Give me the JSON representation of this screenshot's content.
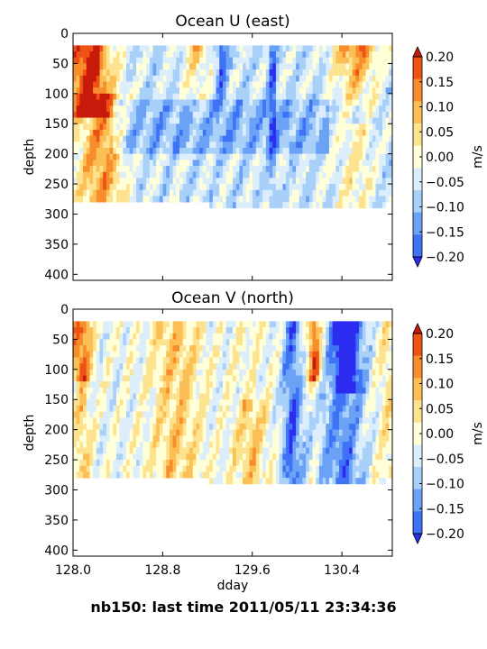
{
  "colors": {
    "levels": [
      "#2c2cf0",
      "#3f73f5",
      "#6ba2f6",
      "#a8d0f9",
      "#dceefc",
      "#ffffd8",
      "#fde38f",
      "#fbbf55",
      "#f88e2b",
      "#ee5316",
      "#c71a0a"
    ],
    "under": "#1010b8",
    "over": "#991000"
  },
  "chart_data": [
    {
      "type": "heatmap",
      "title": "Ocean U (east)",
      "xlabel": "",
      "ylabel": "depth",
      "x_ticks": [
        "128.0",
        "128.8",
        "129.6",
        "130.4"
      ],
      "x_range": [
        128.0,
        130.85
      ],
      "y_ticks": [
        "0",
        "50",
        "100",
        "150",
        "200",
        "250",
        "300",
        "350",
        "400"
      ],
      "y_range": [
        410,
        0
      ],
      "y_inverted": true,
      "data_depth_range": [
        20,
        290
      ],
      "colorbar": {
        "label": "m/s",
        "ticks": [
          "0.20",
          "0.15",
          "0.10",
          "0.05",
          "0.00",
          "−0.05",
          "−0.10",
          "−0.15",
          "−0.20"
        ],
        "levels": [
          -0.25,
          -0.2,
          -0.15,
          -0.1,
          -0.05,
          0,
          0.05,
          0.1,
          0.15,
          0.2,
          0.25
        ],
        "extend": "both"
      }
    },
    {
      "type": "heatmap",
      "title": "Ocean V (north)",
      "xlabel": "dday",
      "ylabel": "depth",
      "x_ticks": [
        "128.0",
        "128.8",
        "129.6",
        "130.4"
      ],
      "x_range": [
        128.0,
        130.85
      ],
      "y_ticks": [
        "0",
        "50",
        "100",
        "150",
        "200",
        "250",
        "300",
        "350",
        "400"
      ],
      "y_range": [
        410,
        0
      ],
      "y_inverted": true,
      "data_depth_range": [
        20,
        290
      ],
      "colorbar": {
        "label": "m/s",
        "ticks": [
          "0.20",
          "0.15",
          "0.10",
          "0.05",
          "0.00",
          "−0.05",
          "−0.10",
          "−0.15",
          "−0.20"
        ],
        "levels": [
          -0.25,
          -0.2,
          -0.15,
          -0.1,
          -0.05,
          0,
          0.05,
          0.1,
          0.15,
          0.2,
          0.25
        ],
        "extend": "both"
      }
    }
  ],
  "footer": "nb150: last time 2011/05/11 23:34:36"
}
